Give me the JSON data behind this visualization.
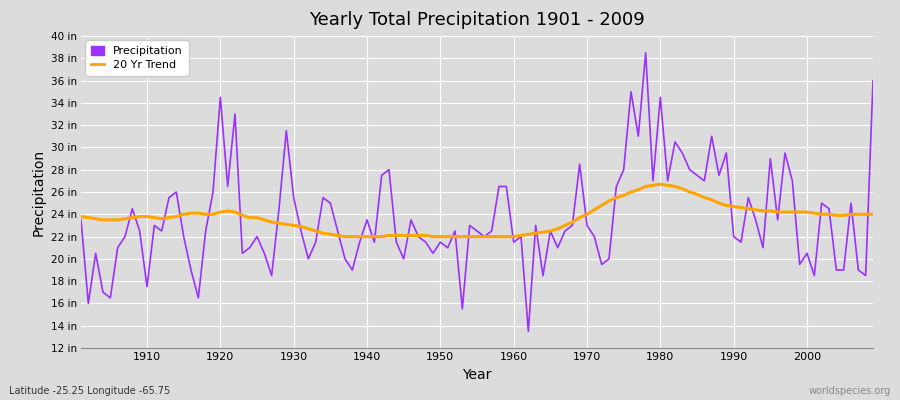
{
  "title": "Yearly Total Precipitation 1901 - 2009",
  "xlabel": "Year",
  "ylabel": "Precipitation",
  "subtitle_lat_lon": "Latitude -25.25 Longitude -65.75",
  "watermark": "worldspecies.org",
  "years": [
    1901,
    1902,
    1903,
    1904,
    1905,
    1906,
    1907,
    1908,
    1909,
    1910,
    1911,
    1912,
    1913,
    1914,
    1915,
    1916,
    1917,
    1918,
    1919,
    1920,
    1921,
    1922,
    1923,
    1924,
    1925,
    1926,
    1927,
    1928,
    1929,
    1930,
    1931,
    1932,
    1933,
    1934,
    1935,
    1936,
    1937,
    1938,
    1939,
    1940,
    1941,
    1942,
    1943,
    1944,
    1945,
    1946,
    1947,
    1948,
    1949,
    1950,
    1951,
    1952,
    1953,
    1954,
    1955,
    1956,
    1957,
    1958,
    1959,
    1960,
    1961,
    1962,
    1963,
    1964,
    1965,
    1966,
    1967,
    1968,
    1969,
    1970,
    1971,
    1972,
    1973,
    1974,
    1975,
    1976,
    1977,
    1978,
    1979,
    1980,
    1981,
    1982,
    1983,
    1984,
    1985,
    1986,
    1987,
    1988,
    1989,
    1990,
    1991,
    1992,
    1993,
    1994,
    1995,
    1996,
    1997,
    1998,
    1999,
    2000,
    2001,
    2002,
    2003,
    2004,
    2005,
    2006,
    2007,
    2008,
    2009
  ],
  "precip": [
    23.5,
    16.0,
    20.5,
    17.0,
    16.5,
    21.0,
    22.0,
    24.5,
    22.5,
    17.5,
    23.0,
    22.5,
    25.5,
    26.0,
    22.0,
    19.0,
    16.5,
    22.5,
    26.0,
    34.5,
    26.5,
    33.0,
    20.5,
    21.0,
    22.0,
    20.5,
    18.5,
    24.5,
    31.5,
    25.5,
    22.5,
    20.0,
    21.5,
    25.5,
    25.0,
    22.5,
    20.0,
    19.0,
    21.5,
    23.5,
    21.5,
    27.5,
    28.0,
    21.5,
    20.0,
    23.5,
    22.0,
    21.5,
    20.5,
    21.5,
    21.0,
    22.5,
    15.5,
    23.0,
    22.5,
    22.0,
    22.5,
    26.5,
    26.5,
    21.5,
    22.0,
    13.5,
    23.0,
    18.5,
    22.5,
    21.0,
    22.5,
    23.0,
    28.5,
    23.0,
    22.0,
    19.5,
    20.0,
    26.5,
    28.0,
    35.0,
    31.0,
    38.5,
    27.0,
    34.5,
    27.0,
    30.5,
    29.5,
    28.0,
    27.5,
    27.0,
    31.0,
    27.5,
    29.5,
    22.0,
    21.5,
    25.5,
    23.5,
    21.0,
    29.0,
    23.5,
    29.5,
    27.0,
    19.5,
    20.5,
    18.5,
    25.0,
    24.5,
    19.0,
    19.0,
    25.0,
    19.0,
    18.5,
    36.0
  ],
  "trend_years": [
    1901,
    1902,
    1903,
    1904,
    1905,
    1906,
    1907,
    1908,
    1909,
    1910,
    1911,
    1912,
    1913,
    1914,
    1915,
    1916,
    1917,
    1918,
    1919,
    1920,
    1921,
    1922,
    1923,
    1924,
    1925,
    1926,
    1927,
    1928,
    1929,
    1930,
    1931,
    1932,
    1933,
    1934,
    1935,
    1936,
    1937,
    1938,
    1939,
    1940,
    1941,
    1942,
    1943,
    1944,
    1945,
    1946,
    1947,
    1948,
    1949,
    1950,
    1951,
    1952,
    1953,
    1954,
    1955,
    1956,
    1957,
    1958,
    1959,
    1960,
    1961,
    1962,
    1963,
    1964,
    1965,
    1966,
    1967,
    1968,
    1969,
    1970,
    1971,
    1972,
    1973,
    1974,
    1975,
    1976,
    1977,
    1978,
    1979,
    1980,
    1981,
    1982,
    1983,
    1984,
    1985,
    1986,
    1987,
    1988,
    1989,
    1990,
    1991,
    1992,
    1993,
    1994,
    1995,
    1996,
    1997,
    1998,
    1999,
    2000,
    2001,
    2002,
    2003,
    2004,
    2005,
    2006,
    2007,
    2008,
    2009
  ],
  "trend": [
    23.8,
    23.7,
    23.6,
    23.5,
    23.5,
    23.5,
    23.6,
    23.7,
    23.8,
    23.8,
    23.7,
    23.6,
    23.7,
    23.8,
    24.0,
    24.1,
    24.1,
    24.0,
    24.0,
    24.2,
    24.3,
    24.2,
    23.9,
    23.7,
    23.7,
    23.5,
    23.3,
    23.2,
    23.1,
    23.0,
    22.9,
    22.7,
    22.5,
    22.3,
    22.2,
    22.1,
    22.0,
    22.0,
    22.0,
    22.0,
    22.0,
    22.0,
    22.1,
    22.1,
    22.1,
    22.1,
    22.1,
    22.1,
    22.0,
    22.0,
    22.0,
    22.0,
    22.0,
    22.0,
    22.0,
    22.0,
    22.0,
    22.0,
    22.0,
    22.0,
    22.1,
    22.2,
    22.3,
    22.4,
    22.5,
    22.7,
    23.0,
    23.3,
    23.7,
    24.0,
    24.4,
    24.8,
    25.2,
    25.5,
    25.7,
    26.0,
    26.2,
    26.5,
    26.6,
    26.7,
    26.6,
    26.5,
    26.3,
    26.0,
    25.8,
    25.5,
    25.3,
    25.0,
    24.8,
    24.7,
    24.6,
    24.5,
    24.4,
    24.3,
    24.3,
    24.2,
    24.2,
    24.2,
    24.2,
    24.2,
    24.1,
    24.0,
    24.0,
    23.9,
    23.9,
    24.0,
    24.0,
    24.0,
    24.0
  ],
  "precip_color": "#9B30FF",
  "trend_color": "#FFA500",
  "bg_color": "#DCDCDC",
  "grid_color": "#FFFFFF",
  "ylim": [
    12,
    40
  ],
  "yticks": [
    12,
    14,
    16,
    18,
    20,
    22,
    24,
    26,
    28,
    30,
    32,
    34,
    36,
    38,
    40
  ],
  "xlim": [
    1901,
    2009
  ],
  "xticks": [
    1910,
    1920,
    1930,
    1940,
    1950,
    1960,
    1970,
    1980,
    1990,
    2000
  ]
}
